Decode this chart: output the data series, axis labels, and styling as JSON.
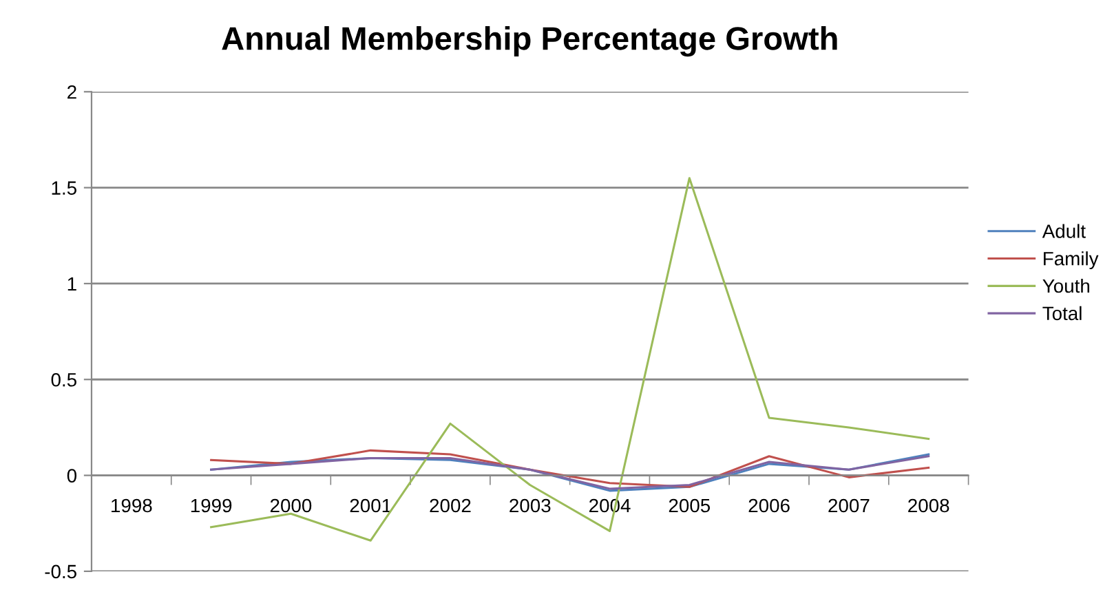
{
  "chart_data": {
    "type": "line",
    "title": "Annual Membership Percentage Growth",
    "categories": [
      "1998",
      "1999",
      "2000",
      "2001",
      "2002",
      "2003",
      "2004",
      "2005",
      "2006",
      "2007",
      "2008"
    ],
    "series": [
      {
        "name": "Adult",
        "color": "#4f81bd",
        "values": [
          null,
          0.03,
          0.07,
          0.09,
          0.08,
          0.03,
          -0.08,
          -0.06,
          0.06,
          0.03,
          0.11
        ]
      },
      {
        "name": "Family",
        "color": "#c0504d",
        "values": [
          null,
          0.08,
          0.06,
          0.13,
          0.11,
          0.03,
          -0.04,
          -0.06,
          0.1,
          -0.01,
          0.04
        ]
      },
      {
        "name": "Youth",
        "color": "#9bbb59",
        "values": [
          null,
          -0.27,
          -0.2,
          -0.34,
          0.27,
          -0.05,
          -0.29,
          1.55,
          0.3,
          0.25,
          0.19
        ]
      },
      {
        "name": "Total",
        "color": "#8064a2",
        "values": [
          null,
          0.03,
          0.06,
          0.09,
          0.09,
          0.03,
          -0.07,
          -0.05,
          0.07,
          0.03,
          0.1
        ]
      }
    ],
    "ylim": [
      -0.5,
      2
    ],
    "yticks": [
      -0.5,
      0,
      0.5,
      1,
      1.5,
      2
    ],
    "grid": "y",
    "legend": "right",
    "marker": "none",
    "line_style": "solid"
  }
}
